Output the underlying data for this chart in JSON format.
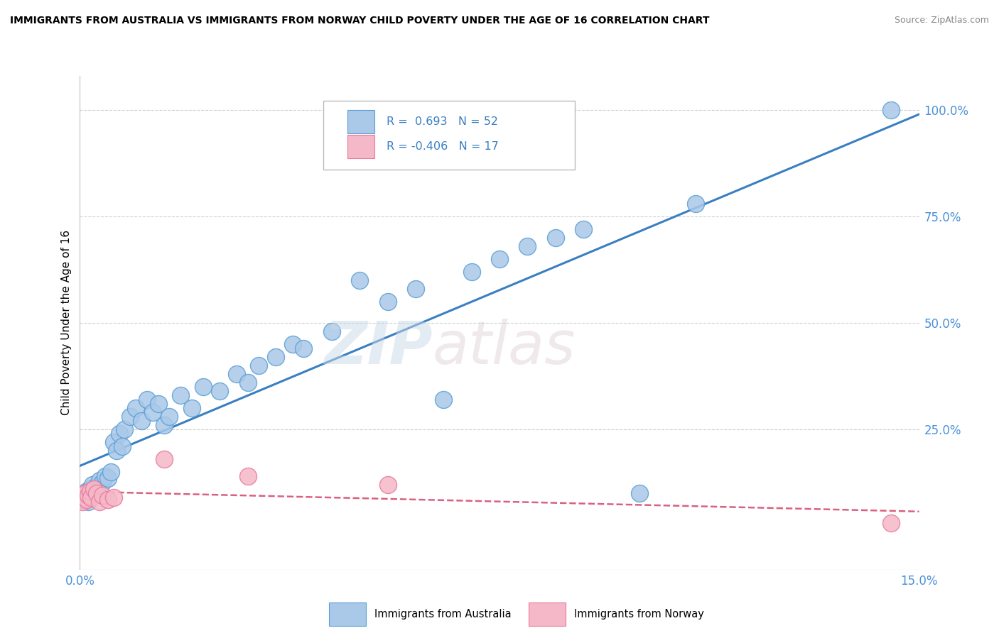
{
  "title": "IMMIGRANTS FROM AUSTRALIA VS IMMIGRANTS FROM NORWAY CHILD POVERTY UNDER THE AGE OF 16 CORRELATION CHART",
  "source": "Source: ZipAtlas.com",
  "ylabel": "Child Poverty Under the Age of 16",
  "xlim": [
    0,
    15
  ],
  "ylim": [
    -8,
    108
  ],
  "x_tick_labels": [
    "0.0%",
    "15.0%"
  ],
  "y_tick_labels": [
    "25.0%",
    "50.0%",
    "75.0%",
    "100.0%"
  ],
  "y_tick_values": [
    25,
    50,
    75,
    100
  ],
  "legend_australia": "Immigrants from Australia",
  "legend_norway": "Immigrants from Norway",
  "R_australia": 0.693,
  "N_australia": 52,
  "R_norway": -0.406,
  "N_norway": 17,
  "australia_color": "#aac8e8",
  "australia_edge": "#5a9fd4",
  "norway_color": "#f5b8c8",
  "norway_edge": "#e87a9a",
  "trendline_australia_color": "#3a7fc1",
  "trendline_norway_color": "#d96080",
  "australia_scatter": [
    [
      0.05,
      8.5
    ],
    [
      0.08,
      9.5
    ],
    [
      0.1,
      9.0
    ],
    [
      0.12,
      10.5
    ],
    [
      0.15,
      8.0
    ],
    [
      0.18,
      11.0
    ],
    [
      0.2,
      10.0
    ],
    [
      0.22,
      12.0
    ],
    [
      0.25,
      9.5
    ],
    [
      0.28,
      11.5
    ],
    [
      0.3,
      10.5
    ],
    [
      0.35,
      13.0
    ],
    [
      0.4,
      12.5
    ],
    [
      0.45,
      14.0
    ],
    [
      0.5,
      13.5
    ],
    [
      0.55,
      15.0
    ],
    [
      0.6,
      22.0
    ],
    [
      0.65,
      20.0
    ],
    [
      0.7,
      24.0
    ],
    [
      0.75,
      21.0
    ],
    [
      0.8,
      25.0
    ],
    [
      0.9,
      28.0
    ],
    [
      1.0,
      30.0
    ],
    [
      1.1,
      27.0
    ],
    [
      1.2,
      32.0
    ],
    [
      1.3,
      29.0
    ],
    [
      1.4,
      31.0
    ],
    [
      1.5,
      26.0
    ],
    [
      1.6,
      28.0
    ],
    [
      1.8,
      33.0
    ],
    [
      2.0,
      30.0
    ],
    [
      2.2,
      35.0
    ],
    [
      2.5,
      34.0
    ],
    [
      2.8,
      38.0
    ],
    [
      3.0,
      36.0
    ],
    [
      3.2,
      40.0
    ],
    [
      3.5,
      42.0
    ],
    [
      3.8,
      45.0
    ],
    [
      4.0,
      44.0
    ],
    [
      4.5,
      48.0
    ],
    [
      5.0,
      60.0
    ],
    [
      5.5,
      55.0
    ],
    [
      6.0,
      58.0
    ],
    [
      6.5,
      32.0
    ],
    [
      7.0,
      62.0
    ],
    [
      7.5,
      65.0
    ],
    [
      8.0,
      68.0
    ],
    [
      8.5,
      70.0
    ],
    [
      9.0,
      72.0
    ],
    [
      10.0,
      10.0
    ],
    [
      11.0,
      78.0
    ],
    [
      14.5,
      100.0
    ]
  ],
  "norway_scatter": [
    [
      0.05,
      8.0
    ],
    [
      0.08,
      9.0
    ],
    [
      0.1,
      10.0
    ],
    [
      0.12,
      8.5
    ],
    [
      0.15,
      9.5
    ],
    [
      0.18,
      10.5
    ],
    [
      0.2,
      9.0
    ],
    [
      0.25,
      11.0
    ],
    [
      0.3,
      10.0
    ],
    [
      0.35,
      8.0
    ],
    [
      0.4,
      9.5
    ],
    [
      0.5,
      8.5
    ],
    [
      0.6,
      9.0
    ],
    [
      1.5,
      18.0
    ],
    [
      3.0,
      14.0
    ],
    [
      5.5,
      12.0
    ],
    [
      14.5,
      3.0
    ]
  ],
  "watermark_zip": "ZIP",
  "watermark_atlas": "atlas",
  "background_color": "#ffffff",
  "grid_color": "#d0d0d0",
  "figsize": [
    14.06,
    8.92
  ],
  "dpi": 100
}
